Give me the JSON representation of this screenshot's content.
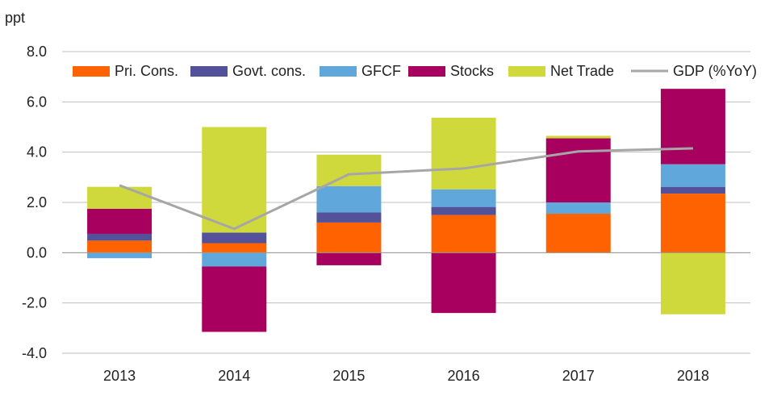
{
  "chart_data": {
    "type": "bar",
    "stacked": true,
    "ylabel": "ppt",
    "ylim": [
      -4,
      8
    ],
    "yticks": [
      -4,
      -2,
      0,
      2,
      4,
      6,
      8
    ],
    "ytick_labels": [
      "-4.0",
      "-2.0",
      "0.0",
      "2.0",
      "4.0",
      "6.0",
      "8.0"
    ],
    "grid": true,
    "legend_position": "top",
    "categories": [
      "2013",
      "2014",
      "2015",
      "2016",
      "2017",
      "2018"
    ],
    "series": [
      {
        "name": "Pri. Cons.",
        "type": "bar",
        "color": "#ff6200",
        "values": [
          0.48,
          0.38,
          1.2,
          1.5,
          1.55,
          2.35
        ]
      },
      {
        "name": "Govt. cons.",
        "type": "bar",
        "color": "#525199",
        "values": [
          0.27,
          0.42,
          0.4,
          0.32,
          0.0,
          0.27
        ]
      },
      {
        "name": "GFCF",
        "type": "bar",
        "color": "#60a7dc",
        "values": [
          -0.22,
          -0.55,
          1.05,
          0.7,
          0.45,
          0.9
        ]
      },
      {
        "name": "Stocks",
        "type": "bar",
        "color": "#a8005f",
        "values": [
          1.0,
          -2.6,
          -0.5,
          -2.4,
          2.55,
          3.0
        ]
      },
      {
        "name": "Net Trade",
        "type": "bar",
        "color": "#d0d93c",
        "values": [
          0.87,
          4.2,
          1.25,
          2.85,
          0.1,
          -2.45
        ]
      },
      {
        "name": "GDP (%YoY)",
        "type": "line",
        "color": "#a6a6a6",
        "values": [
          2.68,
          0.95,
          3.12,
          3.35,
          4.03,
          4.15
        ]
      }
    ]
  }
}
